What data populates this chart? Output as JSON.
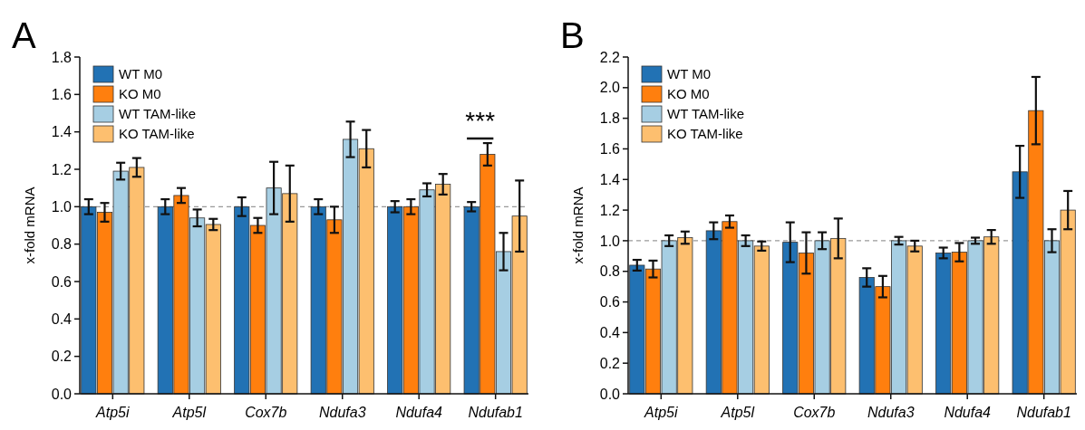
{
  "chart_data": [
    {
      "type": "bar",
      "title": "A",
      "ylabel": "x-fold mRNA",
      "categories": [
        "Atp5i",
        "Atp5l",
        "Cox7b",
        "Ndufa3",
        "Ndufa4",
        "Ndufab1"
      ],
      "ylim": [
        0,
        1.8
      ],
      "yticks": [
        {
          "value": 0,
          "label": "0.0"
        },
        0.2,
        0.4,
        0.6,
        0.8,
        {
          "value": 1,
          "label": "1.0"
        },
        1.2,
        1.4,
        1.6,
        1.8
      ],
      "legend": "top left",
      "grid": false,
      "ref_lines": [
        {
          "axis": "y",
          "value": 1,
          "color": "#999999",
          "line_style": "dashed"
        }
      ],
      "annotations": [
        "***"
      ],
      "series": [
        {
          "name": "WT M0",
          "color": "#2272b4",
          "values": [
            1.0,
            1.0,
            1.0,
            1.0,
            1.0,
            1.0
          ],
          "errors": [
            0.04,
            0.04,
            0.05,
            0.04,
            0.03,
            0.025
          ]
        },
        {
          "name": "KO M0",
          "color": "#ff7f0e",
          "values": [
            0.97,
            1.06,
            0.9,
            0.93,
            1.0,
            1.28
          ],
          "errors": [
            0.05,
            0.04,
            0.04,
            0.07,
            0.04,
            0.06
          ]
        },
        {
          "name": "WT TAM-like",
          "color": "#a6cee3",
          "values": [
            1.19,
            0.94,
            1.1,
            1.36,
            1.09,
            0.76
          ],
          "errors": [
            0.045,
            0.045,
            0.14,
            0.095,
            0.035,
            0.1
          ]
        },
        {
          "name": "KO TAM-like",
          "color": "#fdbf6f",
          "values": [
            1.21,
            0.905,
            1.07,
            1.31,
            1.12,
            0.95
          ],
          "errors": [
            0.05,
            0.03,
            0.15,
            0.1,
            0.055,
            0.19
          ]
        }
      ]
    },
    {
      "type": "bar",
      "title": "B",
      "ylabel": "x-fold mRNA",
      "categories": [
        "Atp5i",
        "Atp5l",
        "Cox7b",
        "Ndufa3",
        "Ndufa4",
        "Ndufab1"
      ],
      "ylim": [
        0,
        2.2
      ],
      "yticks": [
        {
          "value": 0,
          "label": "0.0"
        },
        0.2,
        0.4,
        0.6,
        0.8,
        {
          "value": 1,
          "label": "1.0"
        },
        1.2,
        1.4,
        1.6,
        1.8,
        {
          "value": 2,
          "label": "2.0"
        },
        2.2
      ],
      "legend": "top left",
      "grid": false,
      "ref_lines": [
        {
          "axis": "y",
          "value": 1,
          "color": "#999999",
          "line_style": "dashed"
        }
      ],
      "series": [
        {
          "name": "WT M0",
          "color": "#2272b4",
          "values": [
            0.84,
            1.065,
            0.99,
            0.76,
            0.92,
            1.45
          ],
          "errors": [
            0.035,
            0.055,
            0.13,
            0.06,
            0.035,
            0.17
          ]
        },
        {
          "name": "KO M0",
          "color": "#ff7f0e",
          "values": [
            0.815,
            1.125,
            0.92,
            0.7,
            0.925,
            1.85
          ],
          "errors": [
            0.055,
            0.04,
            0.135,
            0.07,
            0.06,
            0.22
          ]
        },
        {
          "name": "WT TAM-like",
          "color": "#a6cee3",
          "values": [
            1.0,
            1.0,
            1.0,
            1.0,
            1.0,
            1.0
          ],
          "errors": [
            0.035,
            0.035,
            0.055,
            0.025,
            0.02,
            0.075
          ]
        },
        {
          "name": "KO TAM-like",
          "color": "#fdbf6f",
          "values": [
            1.02,
            0.965,
            1.015,
            0.965,
            1.025,
            1.2
          ],
          "errors": [
            0.04,
            0.03,
            0.13,
            0.035,
            0.045,
            0.125
          ]
        }
      ]
    }
  ]
}
